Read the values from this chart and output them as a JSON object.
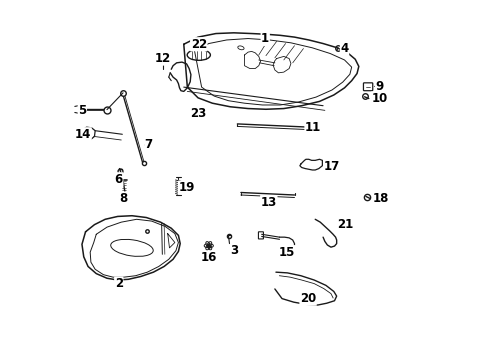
{
  "background_color": "#ffffff",
  "line_color": "#1a1a1a",
  "text_color": "#000000",
  "figsize": [
    4.89,
    3.6
  ],
  "dpi": 100,
  "label_fontsize": 8.5,
  "arrow_lw": 0.7,
  "part_labels": {
    "1": [
      0.558,
      0.87,
      0.558,
      0.895
    ],
    "2": [
      0.148,
      0.232,
      0.148,
      0.21
    ],
    "3": [
      0.458,
      0.32,
      0.472,
      0.302
    ],
    "4": [
      0.76,
      0.868,
      0.78,
      0.868
    ],
    "5": [
      0.068,
      0.695,
      0.046,
      0.695
    ],
    "6": [
      0.148,
      0.522,
      0.148,
      0.502
    ],
    "7": [
      0.21,
      0.598,
      0.232,
      0.598
    ],
    "8": [
      0.162,
      0.468,
      0.162,
      0.448
    ],
    "9": [
      0.854,
      0.762,
      0.878,
      0.762
    ],
    "10": [
      0.854,
      0.728,
      0.878,
      0.728
    ],
    "11": [
      0.668,
      0.648,
      0.692,
      0.648
    ],
    "12": [
      0.272,
      0.818,
      0.272,
      0.84
    ],
    "13": [
      0.568,
      0.458,
      0.568,
      0.438
    ],
    "14": [
      0.072,
      0.628,
      0.048,
      0.628
    ],
    "15": [
      0.62,
      0.318,
      0.62,
      0.298
    ],
    "16": [
      0.4,
      0.302,
      0.4,
      0.282
    ],
    "17": [
      0.722,
      0.538,
      0.745,
      0.538
    ],
    "18": [
      0.858,
      0.448,
      0.882,
      0.448
    ],
    "19": [
      0.315,
      0.485,
      0.338,
      0.478
    ],
    "20": [
      0.678,
      0.188,
      0.678,
      0.168
    ],
    "21": [
      0.76,
      0.368,
      0.782,
      0.375
    ],
    "22": [
      0.372,
      0.858,
      0.372,
      0.88
    ],
    "23": [
      0.348,
      0.692,
      0.37,
      0.685
    ]
  }
}
